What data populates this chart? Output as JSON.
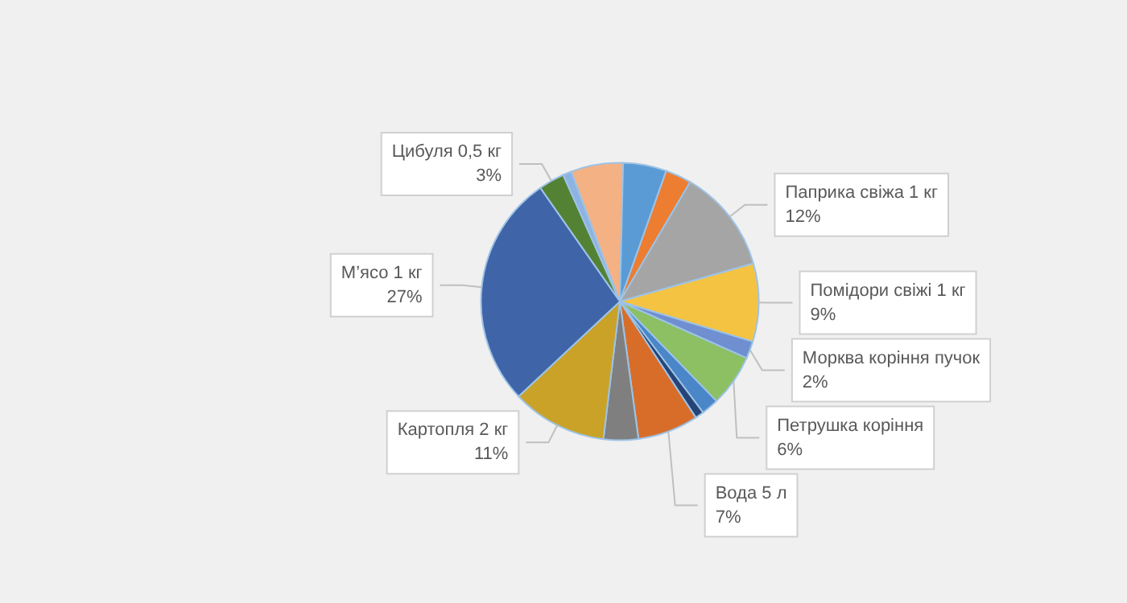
{
  "chart_data": {
    "type": "pie",
    "categories": [
      "Цибуля 0,5 кг",
      null,
      null,
      null,
      null,
      "Паприка свіжа 1 кг",
      "Помідори свіжі 1 кг",
      "Морква коріння пучок",
      "Петрушка коріння",
      null,
      null,
      "Вода 5 л",
      null,
      "Картопля 2 кг",
      "М’ясо 1 кг"
    ],
    "values": [
      3,
      1,
      6,
      5,
      3,
      12,
      9,
      2,
      6,
      2,
      1,
      7,
      4,
      11,
      27
    ],
    "value_labels": [
      "3%",
      null,
      null,
      null,
      null,
      "12%",
      "9%",
      "2%",
      "6%",
      null,
      null,
      "7%",
      null,
      "11%",
      "27%"
    ],
    "colors": [
      "#548235",
      "#8db3e2",
      "#f4b183",
      "#5b9bd5",
      "#ed7d31",
      "#a5a5a5",
      "#f5c342",
      "#6f8fd0",
      "#8cc063",
      "#4a86c8",
      "#264478",
      "#d86d2a",
      "#7f7f7f",
      "#c9a227",
      "#3f64a8"
    ]
  }
}
